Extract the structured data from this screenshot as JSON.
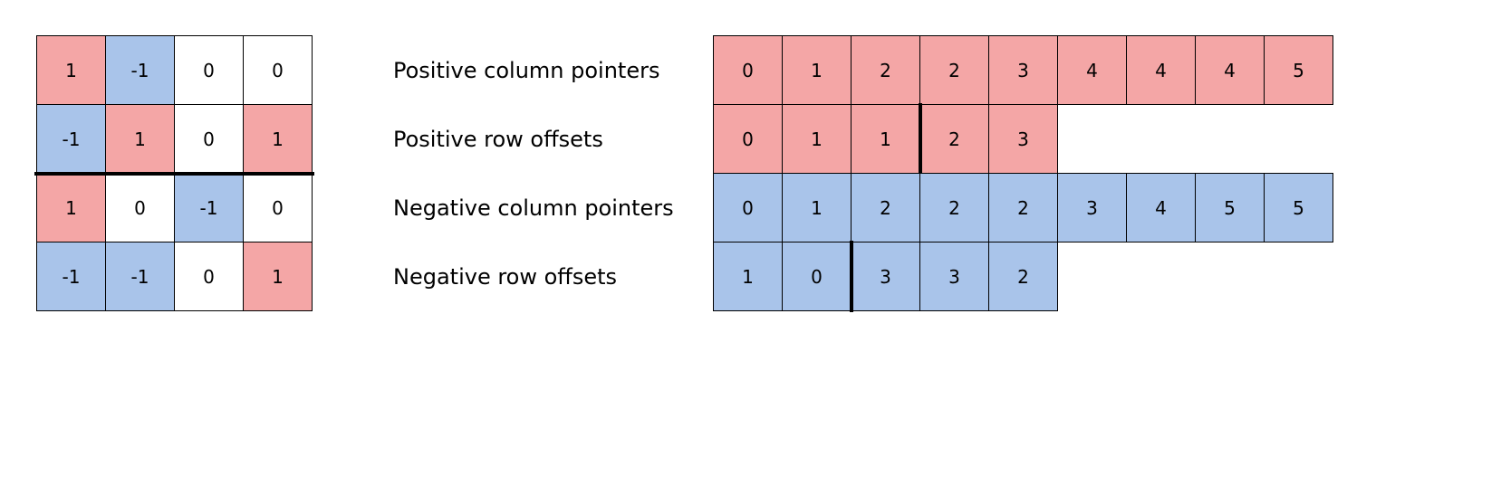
{
  "colors": {
    "positive": "#f4a6a6",
    "negative": "#a9c4ea",
    "zero": "#ffffff"
  },
  "matrix": [
    [
      "1",
      "-1",
      "0",
      "0"
    ],
    [
      "-1",
      "1",
      "0",
      "1"
    ],
    [
      "1",
      "0",
      "-1",
      "0"
    ],
    [
      "-1",
      "-1",
      "0",
      "1"
    ]
  ],
  "matrix_divider_after_row": 2,
  "arrays": [
    {
      "label": "Positive column pointers",
      "tone": "positive",
      "values": [
        "0",
        "1",
        "2",
        "2",
        "3",
        "4",
        "4",
        "4",
        "5"
      ],
      "divider_after": null
    },
    {
      "label": "Positive row offsets",
      "tone": "positive",
      "values": [
        "0",
        "1",
        "1",
        "2",
        "3"
      ],
      "divider_after": 3
    },
    {
      "label": "Negative column pointers",
      "tone": "negative",
      "values": [
        "0",
        "1",
        "2",
        "2",
        "2",
        "3",
        "4",
        "5",
        "5"
      ],
      "divider_after": null
    },
    {
      "label": "Negative row offsets",
      "tone": "negative",
      "values": [
        "1",
        "0",
        "3",
        "3",
        "2"
      ],
      "divider_after": 2
    }
  ]
}
